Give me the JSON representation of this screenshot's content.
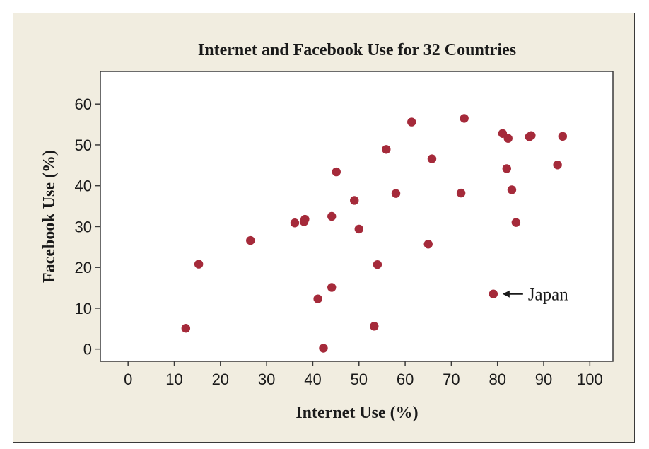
{
  "chart_data": {
    "type": "scatter",
    "title": "Internet and Facebook Use for 32 Countries",
    "xlabel": "Internet Use (%)",
    "ylabel": "Facebook Use (%)",
    "xlim": [
      -6,
      105
    ],
    "ylim": [
      -3,
      68
    ],
    "xticks": [
      0,
      10,
      20,
      30,
      40,
      50,
      60,
      70,
      80,
      90,
      100
    ],
    "yticks": [
      0,
      10,
      20,
      30,
      40,
      50,
      60
    ],
    "point_color": "#a52a3a",
    "points": [
      {
        "x": 12.5,
        "y": 5.1
      },
      {
        "x": 15.3,
        "y": 20.8
      },
      {
        "x": 26.5,
        "y": 26.6
      },
      {
        "x": 36.1,
        "y": 30.9
      },
      {
        "x": 38.1,
        "y": 31.2
      },
      {
        "x": 38.3,
        "y": 31.8
      },
      {
        "x": 41.1,
        "y": 12.3
      },
      {
        "x": 42.3,
        "y": 0.2
      },
      {
        "x": 44.1,
        "y": 32.5
      },
      {
        "x": 44.1,
        "y": 15.1
      },
      {
        "x": 45.1,
        "y": 43.4
      },
      {
        "x": 49.0,
        "y": 36.4
      },
      {
        "x": 50.0,
        "y": 29.4
      },
      {
        "x": 53.3,
        "y": 5.6
      },
      {
        "x": 54.0,
        "y": 20.7
      },
      {
        "x": 55.9,
        "y": 48.9
      },
      {
        "x": 58.0,
        "y": 38.1
      },
      {
        "x": 61.4,
        "y": 55.6
      },
      {
        "x": 65.0,
        "y": 25.7
      },
      {
        "x": 65.8,
        "y": 46.6
      },
      {
        "x": 72.1,
        "y": 38.2
      },
      {
        "x": 72.8,
        "y": 56.5
      },
      {
        "x": 79.1,
        "y": 13.5
      },
      {
        "x": 81.1,
        "y": 52.8
      },
      {
        "x": 82.0,
        "y": 44.2
      },
      {
        "x": 82.3,
        "y": 51.6
      },
      {
        "x": 83.1,
        "y": 39.0
      },
      {
        "x": 84.0,
        "y": 31.0
      },
      {
        "x": 86.9,
        "y": 52.0
      },
      {
        "x": 87.3,
        "y": 52.3
      },
      {
        "x": 93.0,
        "y": 45.1
      },
      {
        "x": 94.1,
        "y": 52.1
      }
    ],
    "annotations": [
      {
        "text": "Japan",
        "x": 79.1,
        "y": 13.5
      }
    ]
  }
}
